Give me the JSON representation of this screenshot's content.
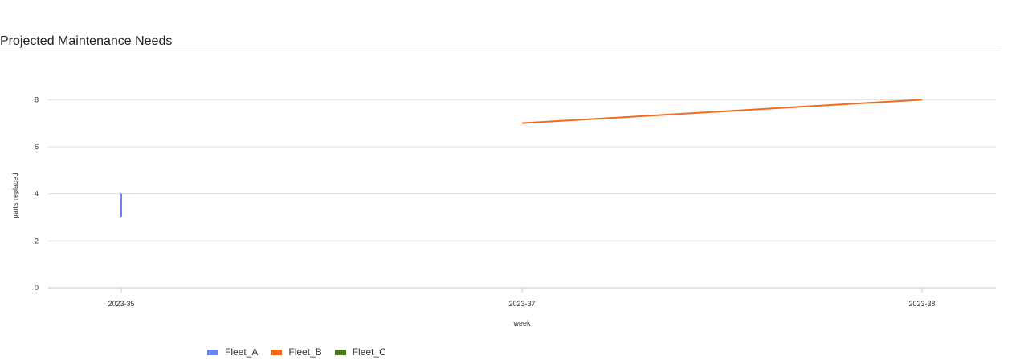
{
  "chart_data": {
    "type": "line",
    "title": "Projected Maintenance Needs",
    "xlabel": "week",
    "ylabel": "parts replaced",
    "categories": [
      "2023-35",
      "2023-37",
      "2023-38"
    ],
    "ylim": [
      0,
      9
    ],
    "yticks": [
      0,
      2,
      4,
      6,
      8
    ],
    "grid": true,
    "legend_position": "bottom-left",
    "series": [
      {
        "name": "Fleet_A",
        "color": "#6b82ea",
        "points": [
          {
            "x": "2023-35",
            "y": 3
          },
          {
            "x": "2023-35",
            "y": 4
          }
        ]
      },
      {
        "name": "Fleet_B",
        "color": "#f26b1d",
        "points": [
          {
            "x": "2023-37",
            "y": 7
          },
          {
            "x": "2023-38",
            "y": 8
          }
        ]
      },
      {
        "name": "Fleet_C",
        "color": "#4a7a1e",
        "points": []
      }
    ]
  }
}
